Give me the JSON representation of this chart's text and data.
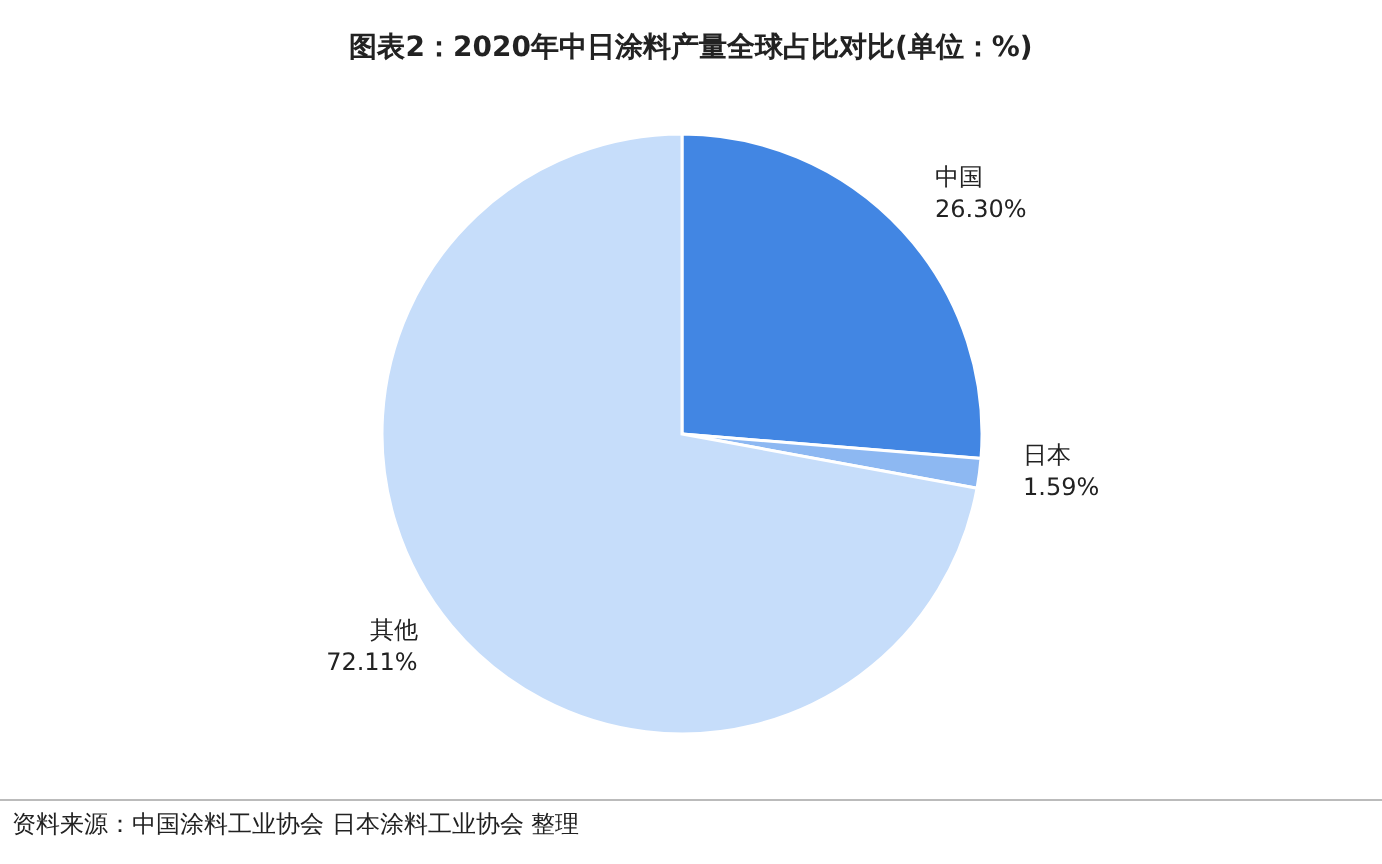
{
  "chart_data": {
    "type": "pie",
    "title": "图表2：2020年中日涂料产量全球占比对比(单位：%)",
    "categories": [
      "中国",
      "日本",
      "其他"
    ],
    "values": [
      26.3,
      1.59,
      72.11
    ],
    "value_labels": [
      "26.30%",
      "1.59%",
      "72.11%"
    ],
    "colors": [
      "#4286e3",
      "#8db8f2",
      "#c6ddfa"
    ],
    "annotations": [
      "资料来源：中国涂料工业协会 日本涂料工业协会 整理"
    ]
  }
}
